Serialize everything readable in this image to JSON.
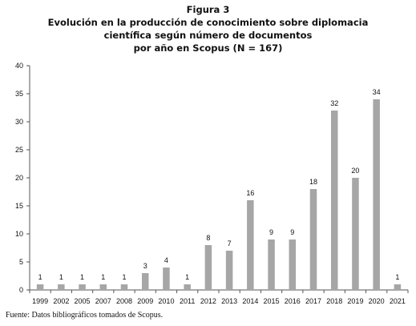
{
  "figure_label": "Figura 3",
  "title_lines": [
    "Evolución en la producción  de conocimiento sobre diplomacia",
    "científica según número de documentos",
    "por año en Scopus (N = 167)"
  ],
  "footer": "Fuente: Datos bibliográficos tomados de Scopus.",
  "chart_data": {
    "type": "bar",
    "title": "Evolución en la producción  de conocimiento sobre diplomacia científica según número de documentos por año en Scopus (N = 167)",
    "xlabel": "",
    "ylabel": "",
    "categories": [
      "1999",
      "2002",
      "2005",
      "2007",
      "2008",
      "2009",
      "2010",
      "2011",
      "2012",
      "2013",
      "2014",
      "2015",
      "2016",
      "2017",
      "2018",
      "2019",
      "2020",
      "2021"
    ],
    "values": [
      1,
      1,
      1,
      1,
      1,
      3,
      4,
      1,
      8,
      7,
      16,
      9,
      9,
      18,
      32,
      20,
      34,
      1
    ],
    "ylim": [
      0,
      40
    ],
    "yticks": [
      0,
      5,
      10,
      15,
      20,
      25,
      30,
      35,
      40
    ],
    "grid": false,
    "legend": "none",
    "bar_color": "#a6a6a6",
    "axis_color": "#555555",
    "data_labels": true
  }
}
